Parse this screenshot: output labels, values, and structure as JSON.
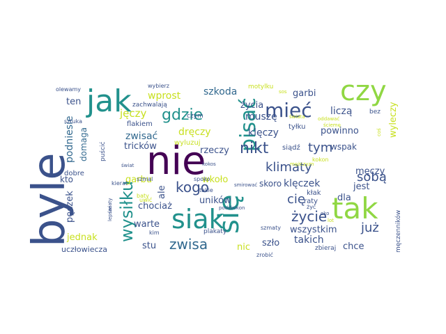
{
  "palette": {
    "dark_purple": "#440154",
    "indigo": "#3b528b",
    "blue": "#31688e",
    "teal": "#21918c",
    "green": "#35b779",
    "lime": "#90d743",
    "yellow": "#c8e020",
    "slate": "#2c5f87"
  },
  "words": [
    "byle",
    "nie",
    "jak",
    "czy",
    "siak",
    "się",
    "tak",
    "pisać",
    "mieć",
    "gdzie",
    "wysiłku",
    "kogo",
    "nikt",
    "klimaty",
    "sobą",
    "życie",
    "tym",
    "cię",
    "już",
    "zwisa",
    "jęczy",
    "szkoda",
    "wprost",
    "życia",
    "muszę",
    "liczą",
    "garbi",
    "bez",
    "ten",
    "podniesie",
    "domaga",
    "zwisać",
    "dręczy",
    "klęczy",
    "tyłku",
    "powinno",
    "wspak",
    "wyleczy",
    "tricków",
    "rzeczy",
    "wyluzuj",
    "siądź",
    "kokon",
    "kto",
    "garbu",
    "ale",
    "wkoło",
    "skoro",
    "klęczek",
    "dla",
    "jest",
    "męczy",
    "pęczek",
    "uników",
    "chociaż",
    "kłak",
    "raty",
    "żyć",
    "warte",
    "jednak",
    "stu",
    "nic",
    "szło",
    "takich",
    "wszystkim",
    "chce",
    "uczłowiecza",
    "zbieraj",
    "zrobić",
    "kim",
    "plakaty",
    "szmaty",
    "podskokon",
    "lepsze",
    "spoko",
    "szmal",
    "baty",
    "uwić",
    "kierat",
    "światy",
    "takie",
    "kokos",
    "świat",
    "dobre",
    "puścić",
    "sztuka",
    "zachwalają",
    "flakiem",
    "czym",
    "wybierz",
    "olewamy",
    "motylku",
    "oddawać",
    "ściemę",
    "coś",
    "sos",
    "mężczyzn",
    "oko",
    "męczenników",
    "smirować",
    "świata",
    "lot"
  ]
}
